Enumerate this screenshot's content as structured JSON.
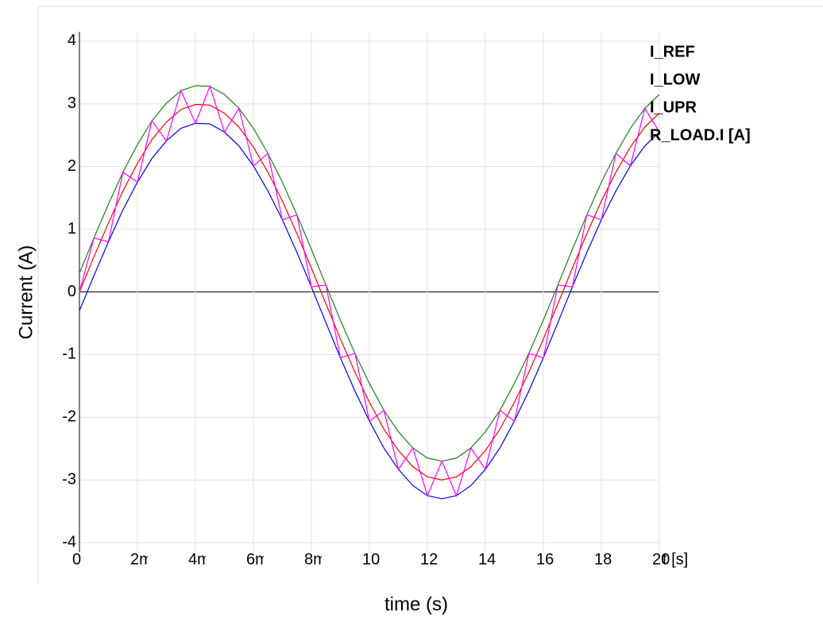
{
  "chart_data": {
    "type": "line",
    "xlabel": "time (s)",
    "ylabel": "Current (A)",
    "x_unit_label": "t [s]",
    "x": [
      0,
      0.0005,
      0.001,
      0.0015,
      0.002,
      0.0025,
      0.003,
      0.0035,
      0.004,
      0.0045,
      0.005,
      0.0055,
      0.006,
      0.0065,
      0.007,
      0.0075,
      0.008,
      0.0085,
      0.009,
      0.0095,
      0.01,
      0.0105,
      0.011,
      0.0115,
      0.012,
      0.0125,
      0.013,
      0.0135,
      0.014,
      0.0145,
      0.015,
      0.0155,
      0.016,
      0.0165,
      0.017,
      0.0175,
      0.018,
      0.0185,
      0.019,
      0.0195,
      0.02
    ],
    "series": [
      {
        "name": "I_REF",
        "color": "#ff0000",
        "values": [
          0,
          0.56,
          1.1,
          1.61,
          2.05,
          2.43,
          2.71,
          2.91,
          2.99,
          2.98,
          2.85,
          2.63,
          2.31,
          1.91,
          1.45,
          0.93,
          0.38,
          -0.19,
          -0.75,
          -1.28,
          -1.76,
          -2.19,
          -2.53,
          -2.79,
          -2.95,
          -3,
          -2.95,
          -2.79,
          -2.53,
          -2.19,
          -1.76,
          -1.28,
          -0.75,
          -0.19,
          0.38,
          0.93,
          1.45,
          1.91,
          2.31,
          2.63,
          2.85
        ]
      },
      {
        "name": "I_LOW",
        "color": "#0000ff",
        "values": [
          -0.3,
          0.26,
          0.8,
          1.31,
          1.75,
          2.13,
          2.41,
          2.61,
          2.69,
          2.68,
          2.55,
          2.33,
          2.01,
          1.61,
          1.15,
          0.63,
          0.08,
          -0.49,
          -1.05,
          -1.58,
          -2.06,
          -2.49,
          -2.83,
          -3.09,
          -3.25,
          -3.3,
          -3.25,
          -3.09,
          -2.83,
          -2.49,
          -2.06,
          -1.58,
          -1.05,
          -0.49,
          0.08,
          0.63,
          1.15,
          1.61,
          2.01,
          2.33,
          2.55
        ]
      },
      {
        "name": "I_UPR",
        "color": "#1a801a",
        "values": [
          0.3,
          0.86,
          1.4,
          1.91,
          2.35,
          2.73,
          3.01,
          3.21,
          3.29,
          3.28,
          3.15,
          2.93,
          2.61,
          2.21,
          1.75,
          1.23,
          0.68,
          0.11,
          -0.45,
          -0.98,
          -1.46,
          -1.89,
          -2.23,
          -2.49,
          -2.65,
          -2.7,
          -2.65,
          -2.49,
          -2.23,
          -1.89,
          -1.46,
          -0.98,
          -0.45,
          0.11,
          0.68,
          1.23,
          1.75,
          2.21,
          2.61,
          2.93,
          3.15
        ]
      },
      {
        "name": "R_LOAD.I [A]",
        "color": "#ff00ff",
        "values": [
          0,
          0.86,
          0.8,
          1.91,
          1.75,
          2.73,
          2.41,
          3.21,
          2.69,
          3.28,
          2.55,
          2.93,
          2.01,
          2.21,
          1.15,
          1.23,
          0.08,
          0.11,
          -1.05,
          -0.98,
          -2.06,
          -1.89,
          -2.83,
          -2.49,
          -3.25,
          -2.7,
          -3.25,
          -2.49,
          -2.83,
          -1.89,
          -2.06,
          -0.98,
          -1.05,
          0.11,
          0.08,
          1.23,
          1.15,
          2.21,
          2.01,
          2.93,
          2.55
        ]
      }
    ],
    "xlim": [
      0,
      0.02
    ],
    "ylim": [
      -4.15,
      4.15
    ],
    "xticks": [
      {
        "value": 0,
        "label": "0"
      },
      {
        "value": 0.002,
        "label": "2m"
      },
      {
        "value": 0.004,
        "label": "4m"
      },
      {
        "value": 0.006,
        "label": "6m"
      },
      {
        "value": 0.008,
        "label": "8m"
      },
      {
        "value": 0.01,
        "label": "10m"
      },
      {
        "value": 0.012,
        "label": "12m"
      },
      {
        "value": 0.014,
        "label": "14m"
      },
      {
        "value": 0.016,
        "label": "16m"
      },
      {
        "value": 0.018,
        "label": "18m"
      },
      {
        "value": 0.02,
        "label": "20m"
      }
    ],
    "yticks": [
      -4,
      -3,
      -2,
      -1,
      0,
      1,
      2,
      3,
      4
    ],
    "grid": true
  }
}
